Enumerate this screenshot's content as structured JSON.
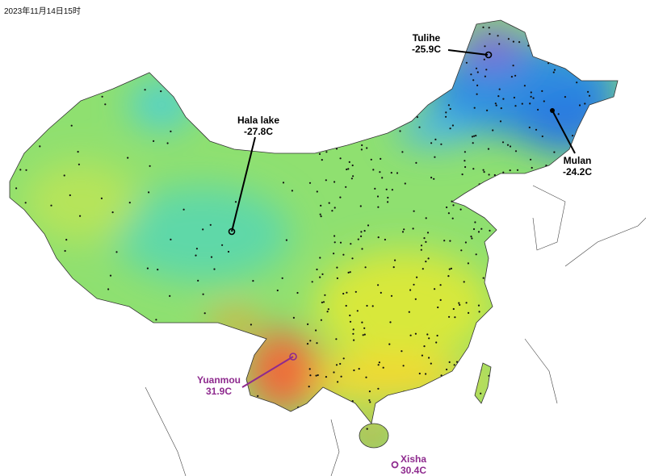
{
  "timestamp": "2023年11月14日15时",
  "colors": {
    "cold": "#3b7fd6",
    "mild": "#7fdc6a",
    "warm": "#f2e33a",
    "hot": "#ef6a3a",
    "label_cold": "#000000",
    "label_hot": "#8e2a8e"
  },
  "stations": [
    {
      "name": "Hala lake",
      "temp": "-27.8C",
      "type": "cold"
    },
    {
      "name": "Tulihe",
      "temp": "-25.9C",
      "type": "cold"
    },
    {
      "name": "Mulan",
      "temp": "-24.2C",
      "type": "cold"
    },
    {
      "name": "Yuanmou",
      "temp": "31.9C",
      "type": "hot"
    },
    {
      "name": "Xisha",
      "temp": "30.4C",
      "type": "hot"
    }
  ]
}
